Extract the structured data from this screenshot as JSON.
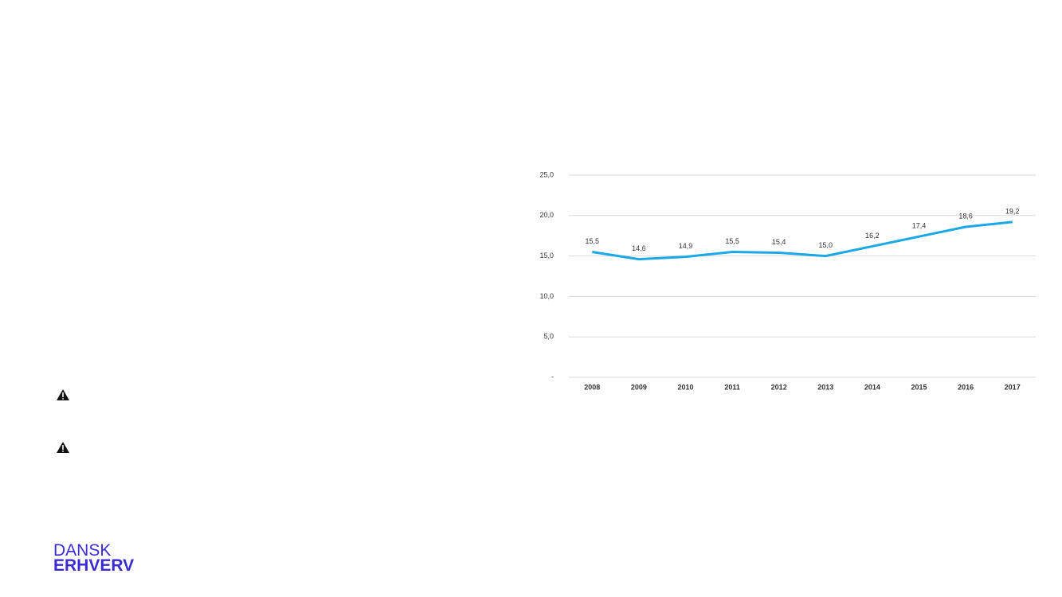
{
  "chart_data": {
    "type": "line",
    "categories": [
      "2008",
      "2009",
      "2010",
      "2011",
      "2012",
      "2013",
      "2014",
      "2015",
      "2016",
      "2017"
    ],
    "values": [
      15.5,
      14.6,
      14.9,
      15.5,
      15.4,
      15.0,
      16.2,
      17.4,
      18.6,
      19.2
    ],
    "value_labels": [
      "15,5",
      "14,6",
      "14,9",
      "15,5",
      "15,4",
      "15,0",
      "16,2",
      "17,4",
      "18,6",
      "19,2"
    ],
    "color": "#1ba8e6",
    "ylim": [
      0,
      25
    ],
    "yticks": [
      {
        "value": 0,
        "label": "-"
      },
      {
        "value": 5,
        "label": "5,0"
      },
      {
        "value": 10,
        "label": "10,0"
      },
      {
        "value": 15,
        "label": "15,0"
      },
      {
        "value": 20,
        "label": "20,0"
      },
      {
        "value": 25,
        "label": "25,0"
      }
    ],
    "grid": true
  },
  "logo": {
    "line1": "DANSK",
    "line2": "ERHVERV"
  }
}
